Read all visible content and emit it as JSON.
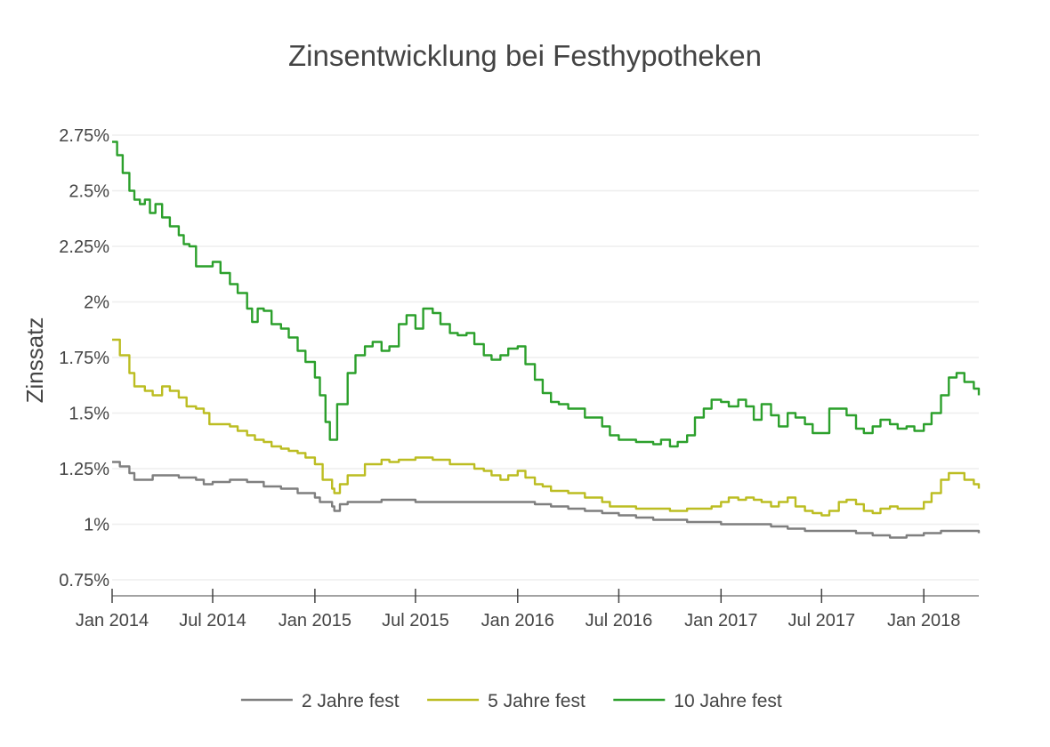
{
  "chart_data": {
    "type": "line",
    "title": "Zinsentwicklung bei Festhypotheken",
    "ylabel": "Zinssatz",
    "xlabel": "",
    "x_range": [
      "2014-01-01",
      "2018-04-10"
    ],
    "ylim": [
      0.7,
      2.75
    ],
    "grid": true,
    "legend_placement": "bottom",
    "x_ticks": [
      {
        "date": "2014-01-01",
        "label": "Jan 2014"
      },
      {
        "date": "2014-07-01",
        "label": "Jul 2014"
      },
      {
        "date": "2015-01-01",
        "label": "Jan 2015"
      },
      {
        "date": "2015-07-01",
        "label": "Jul 2015"
      },
      {
        "date": "2016-01-01",
        "label": "Jan 2016"
      },
      {
        "date": "2016-07-01",
        "label": "Jul 2016"
      },
      {
        "date": "2017-01-01",
        "label": "Jan 2017"
      },
      {
        "date": "2017-07-01",
        "label": "Jul 2017"
      },
      {
        "date": "2018-01-01",
        "label": "Jan 2018"
      }
    ],
    "y_ticks": [
      {
        "value": 0.75,
        "label": "0.75%"
      },
      {
        "value": 1.0,
        "label": "1%"
      },
      {
        "value": 1.25,
        "label": "1.25%"
      },
      {
        "value": 1.5,
        "label": "1.5%"
      },
      {
        "value": 1.75,
        "label": "1.75%"
      },
      {
        "value": 2.0,
        "label": "2%"
      },
      {
        "value": 2.25,
        "label": "2.25%"
      },
      {
        "value": 2.5,
        "label": "2.5%"
      },
      {
        "value": 2.75,
        "label": "2.75%"
      }
    ],
    "series": [
      {
        "name": "2 Jahre fest",
        "color": "#7f7f7f",
        "points": [
          [
            "2014-01-01",
            1.28
          ],
          [
            "2014-01-15",
            1.26
          ],
          [
            "2014-02-01",
            1.23
          ],
          [
            "2014-02-10",
            1.2
          ],
          [
            "2014-03-01",
            1.2
          ],
          [
            "2014-03-15",
            1.22
          ],
          [
            "2014-04-01",
            1.22
          ],
          [
            "2014-05-01",
            1.21
          ],
          [
            "2014-06-01",
            1.2
          ],
          [
            "2014-06-15",
            1.18
          ],
          [
            "2014-07-01",
            1.19
          ],
          [
            "2014-08-01",
            1.2
          ],
          [
            "2014-09-01",
            1.19
          ],
          [
            "2014-10-01",
            1.17
          ],
          [
            "2014-11-01",
            1.16
          ],
          [
            "2014-12-01",
            1.14
          ],
          [
            "2015-01-01",
            1.12
          ],
          [
            "2015-01-10",
            1.1
          ],
          [
            "2015-02-01",
            1.08
          ],
          [
            "2015-02-05",
            1.06
          ],
          [
            "2015-02-15",
            1.09
          ],
          [
            "2015-03-01",
            1.1
          ],
          [
            "2015-04-01",
            1.1
          ],
          [
            "2015-05-01",
            1.11
          ],
          [
            "2015-06-01",
            1.11
          ],
          [
            "2015-07-01",
            1.1
          ],
          [
            "2015-09-01",
            1.1
          ],
          [
            "2015-11-01",
            1.1
          ],
          [
            "2016-01-01",
            1.1
          ],
          [
            "2016-02-01",
            1.09
          ],
          [
            "2016-03-01",
            1.08
          ],
          [
            "2016-04-01",
            1.07
          ],
          [
            "2016-05-01",
            1.06
          ],
          [
            "2016-06-01",
            1.05
          ],
          [
            "2016-07-01",
            1.04
          ],
          [
            "2016-08-01",
            1.03
          ],
          [
            "2016-09-01",
            1.02
          ],
          [
            "2016-11-01",
            1.01
          ],
          [
            "2017-01-01",
            1.0
          ],
          [
            "2017-03-01",
            1.0
          ],
          [
            "2017-04-01",
            0.99
          ],
          [
            "2017-05-01",
            0.98
          ],
          [
            "2017-06-01",
            0.97
          ],
          [
            "2017-08-01",
            0.97
          ],
          [
            "2017-09-01",
            0.96
          ],
          [
            "2017-10-01",
            0.95
          ],
          [
            "2017-11-01",
            0.94
          ],
          [
            "2017-12-01",
            0.95
          ],
          [
            "2018-01-01",
            0.96
          ],
          [
            "2018-02-01",
            0.97
          ],
          [
            "2018-03-01",
            0.97
          ],
          [
            "2018-04-10",
            0.96
          ]
        ]
      },
      {
        "name": "5 Jahre fest",
        "color": "#bcbd22",
        "points": [
          [
            "2014-01-01",
            1.83
          ],
          [
            "2014-01-15",
            1.76
          ],
          [
            "2014-02-01",
            1.68
          ],
          [
            "2014-02-10",
            1.62
          ],
          [
            "2014-03-01",
            1.6
          ],
          [
            "2014-03-15",
            1.58
          ],
          [
            "2014-04-01",
            1.62
          ],
          [
            "2014-04-15",
            1.6
          ],
          [
            "2014-05-01",
            1.57
          ],
          [
            "2014-05-15",
            1.53
          ],
          [
            "2014-06-01",
            1.52
          ],
          [
            "2014-06-15",
            1.5
          ],
          [
            "2014-06-25",
            1.45
          ],
          [
            "2014-07-15",
            1.45
          ],
          [
            "2014-08-01",
            1.44
          ],
          [
            "2014-08-15",
            1.42
          ],
          [
            "2014-09-01",
            1.4
          ],
          [
            "2014-09-15",
            1.38
          ],
          [
            "2014-10-01",
            1.37
          ],
          [
            "2014-10-15",
            1.35
          ],
          [
            "2014-11-01",
            1.34
          ],
          [
            "2014-11-15",
            1.33
          ],
          [
            "2014-12-01",
            1.32
          ],
          [
            "2014-12-15",
            1.3
          ],
          [
            "2015-01-01",
            1.27
          ],
          [
            "2015-01-15",
            1.2
          ],
          [
            "2015-02-01",
            1.16
          ],
          [
            "2015-02-05",
            1.14
          ],
          [
            "2015-02-15",
            1.18
          ],
          [
            "2015-03-01",
            1.22
          ],
          [
            "2015-04-01",
            1.27
          ],
          [
            "2015-05-01",
            1.29
          ],
          [
            "2015-05-15",
            1.28
          ],
          [
            "2015-06-01",
            1.29
          ],
          [
            "2015-07-01",
            1.3
          ],
          [
            "2015-08-01",
            1.29
          ],
          [
            "2015-09-01",
            1.27
          ],
          [
            "2015-10-01",
            1.27
          ],
          [
            "2015-10-15",
            1.25
          ],
          [
            "2015-11-01",
            1.24
          ],
          [
            "2015-11-15",
            1.22
          ],
          [
            "2015-12-01",
            1.2
          ],
          [
            "2015-12-15",
            1.22
          ],
          [
            "2016-01-01",
            1.24
          ],
          [
            "2016-01-15",
            1.21
          ],
          [
            "2016-02-01",
            1.18
          ],
          [
            "2016-02-15",
            1.17
          ],
          [
            "2016-03-01",
            1.15
          ],
          [
            "2016-04-01",
            1.14
          ],
          [
            "2016-05-01",
            1.12
          ],
          [
            "2016-06-01",
            1.1
          ],
          [
            "2016-06-15",
            1.08
          ],
          [
            "2016-07-01",
            1.08
          ],
          [
            "2016-08-01",
            1.07
          ],
          [
            "2016-09-01",
            1.07
          ],
          [
            "2016-10-01",
            1.06
          ],
          [
            "2016-11-01",
            1.07
          ],
          [
            "2016-12-01",
            1.07
          ],
          [
            "2016-12-15",
            1.08
          ],
          [
            "2017-01-01",
            1.1
          ],
          [
            "2017-01-15",
            1.12
          ],
          [
            "2017-02-01",
            1.11
          ],
          [
            "2017-02-15",
            1.12
          ],
          [
            "2017-03-01",
            1.11
          ],
          [
            "2017-03-15",
            1.1
          ],
          [
            "2017-04-01",
            1.08
          ],
          [
            "2017-04-15",
            1.1
          ],
          [
            "2017-05-01",
            1.12
          ],
          [
            "2017-05-15",
            1.08
          ],
          [
            "2017-06-01",
            1.06
          ],
          [
            "2017-06-15",
            1.05
          ],
          [
            "2017-07-01",
            1.04
          ],
          [
            "2017-07-15",
            1.06
          ],
          [
            "2017-08-01",
            1.1
          ],
          [
            "2017-08-15",
            1.11
          ],
          [
            "2017-09-01",
            1.09
          ],
          [
            "2017-09-15",
            1.06
          ],
          [
            "2017-10-01",
            1.05
          ],
          [
            "2017-10-15",
            1.07
          ],
          [
            "2017-11-01",
            1.08
          ],
          [
            "2017-11-15",
            1.07
          ],
          [
            "2017-12-01",
            1.07
          ],
          [
            "2017-12-15",
            1.07
          ],
          [
            "2018-01-01",
            1.1
          ],
          [
            "2018-01-15",
            1.14
          ],
          [
            "2018-02-01",
            1.2
          ],
          [
            "2018-02-15",
            1.23
          ],
          [
            "2018-03-01",
            1.23
          ],
          [
            "2018-03-15",
            1.2
          ],
          [
            "2018-04-01",
            1.18
          ],
          [
            "2018-04-10",
            1.16
          ]
        ]
      },
      {
        "name": "10 Jahre fest",
        "color": "#2ca02c",
        "points": [
          [
            "2014-01-01",
            2.72
          ],
          [
            "2014-01-10",
            2.66
          ],
          [
            "2014-01-20",
            2.58
          ],
          [
            "2014-02-01",
            2.5
          ],
          [
            "2014-02-10",
            2.46
          ],
          [
            "2014-02-20",
            2.44
          ],
          [
            "2014-03-01",
            2.46
          ],
          [
            "2014-03-10",
            2.4
          ],
          [
            "2014-03-20",
            2.44
          ],
          [
            "2014-04-01",
            2.38
          ],
          [
            "2014-04-15",
            2.34
          ],
          [
            "2014-05-01",
            2.3
          ],
          [
            "2014-05-10",
            2.26
          ],
          [
            "2014-05-20",
            2.25
          ],
          [
            "2014-06-01",
            2.16
          ],
          [
            "2014-06-15",
            2.16
          ],
          [
            "2014-07-01",
            2.18
          ],
          [
            "2014-07-15",
            2.13
          ],
          [
            "2014-08-01",
            2.08
          ],
          [
            "2014-08-15",
            2.04
          ],
          [
            "2014-09-01",
            1.97
          ],
          [
            "2014-09-10",
            1.91
          ],
          [
            "2014-09-20",
            1.97
          ],
          [
            "2014-10-01",
            1.96
          ],
          [
            "2014-10-15",
            1.9
          ],
          [
            "2014-11-01",
            1.88
          ],
          [
            "2014-11-15",
            1.84
          ],
          [
            "2014-12-01",
            1.78
          ],
          [
            "2014-12-15",
            1.73
          ],
          [
            "2015-01-01",
            1.66
          ],
          [
            "2015-01-10",
            1.58
          ],
          [
            "2015-01-20",
            1.46
          ],
          [
            "2015-01-28",
            1.38
          ],
          [
            "2015-02-10",
            1.54
          ],
          [
            "2015-03-01",
            1.68
          ],
          [
            "2015-03-15",
            1.76
          ],
          [
            "2015-04-01",
            1.8
          ],
          [
            "2015-04-15",
            1.82
          ],
          [
            "2015-05-01",
            1.78
          ],
          [
            "2015-05-15",
            1.8
          ],
          [
            "2015-06-01",
            1.9
          ],
          [
            "2015-06-15",
            1.94
          ],
          [
            "2015-07-01",
            1.88
          ],
          [
            "2015-07-15",
            1.97
          ],
          [
            "2015-08-01",
            1.95
          ],
          [
            "2015-08-15",
            1.9
          ],
          [
            "2015-09-01",
            1.86
          ],
          [
            "2015-09-15",
            1.85
          ],
          [
            "2015-10-01",
            1.86
          ],
          [
            "2015-10-15",
            1.81
          ],
          [
            "2015-11-01",
            1.76
          ],
          [
            "2015-11-15",
            1.74
          ],
          [
            "2015-12-01",
            1.76
          ],
          [
            "2015-12-15",
            1.79
          ],
          [
            "2016-01-01",
            1.8
          ],
          [
            "2016-01-15",
            1.72
          ],
          [
            "2016-02-01",
            1.65
          ],
          [
            "2016-02-15",
            1.59
          ],
          [
            "2016-03-01",
            1.55
          ],
          [
            "2016-03-15",
            1.54
          ],
          [
            "2016-04-01",
            1.52
          ],
          [
            "2016-05-01",
            1.48
          ],
          [
            "2016-06-01",
            1.44
          ],
          [
            "2016-06-15",
            1.4
          ],
          [
            "2016-07-01",
            1.38
          ],
          [
            "2016-08-01",
            1.37
          ],
          [
            "2016-09-01",
            1.36
          ],
          [
            "2016-09-15",
            1.38
          ],
          [
            "2016-10-01",
            1.35
          ],
          [
            "2016-10-15",
            1.37
          ],
          [
            "2016-11-01",
            1.4
          ],
          [
            "2016-11-15",
            1.48
          ],
          [
            "2016-12-01",
            1.52
          ],
          [
            "2016-12-15",
            1.56
          ],
          [
            "2017-01-01",
            1.55
          ],
          [
            "2017-01-15",
            1.53
          ],
          [
            "2017-02-01",
            1.56
          ],
          [
            "2017-02-15",
            1.53
          ],
          [
            "2017-03-01",
            1.47
          ],
          [
            "2017-03-15",
            1.54
          ],
          [
            "2017-04-01",
            1.49
          ],
          [
            "2017-04-15",
            1.44
          ],
          [
            "2017-05-01",
            1.5
          ],
          [
            "2017-05-15",
            1.48
          ],
          [
            "2017-06-01",
            1.45
          ],
          [
            "2017-06-15",
            1.41
          ],
          [
            "2017-07-01",
            1.41
          ],
          [
            "2017-07-15",
            1.52
          ],
          [
            "2017-08-01",
            1.52
          ],
          [
            "2017-08-15",
            1.49
          ],
          [
            "2017-09-01",
            1.43
          ],
          [
            "2017-09-15",
            1.41
          ],
          [
            "2017-10-01",
            1.44
          ],
          [
            "2017-10-15",
            1.47
          ],
          [
            "2017-11-01",
            1.45
          ],
          [
            "2017-11-15",
            1.43
          ],
          [
            "2017-12-01",
            1.44
          ],
          [
            "2017-12-15",
            1.42
          ],
          [
            "2018-01-01",
            1.45
          ],
          [
            "2018-01-15",
            1.5
          ],
          [
            "2018-02-01",
            1.58
          ],
          [
            "2018-02-15",
            1.66
          ],
          [
            "2018-03-01",
            1.68
          ],
          [
            "2018-03-15",
            1.64
          ],
          [
            "2018-04-01",
            1.61
          ],
          [
            "2018-04-10",
            1.58
          ]
        ]
      }
    ]
  }
}
